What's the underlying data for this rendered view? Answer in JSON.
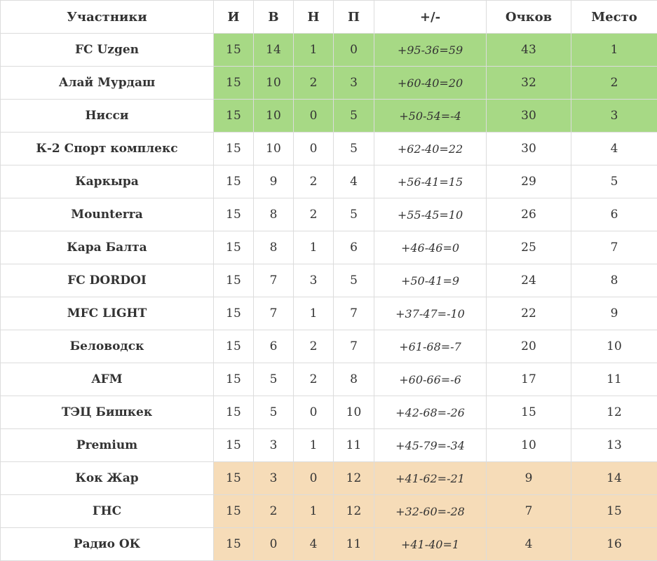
{
  "colors": {
    "promotion": "#a7d985",
    "relegation": "#f6dcb8"
  },
  "headers": [
    "Участники",
    "И",
    "В",
    "Н",
    "П",
    "+/-",
    "Очков",
    "Место"
  ],
  "rows": [
    {
      "team": "FC Uzgen",
      "i": "15",
      "v": "14",
      "n": "1",
      "p": "0",
      "diff": "+95-36=59",
      "pts": "43",
      "place": "1",
      "zone": "promo"
    },
    {
      "team": "Алай Мурдаш",
      "i": "15",
      "v": "10",
      "n": "2",
      "p": "3",
      "diff": "+60-40=20",
      "pts": "32",
      "place": "2",
      "zone": "promo"
    },
    {
      "team": "Нисси",
      "i": "15",
      "v": "10",
      "n": "0",
      "p": "5",
      "diff": "+50-54=-4",
      "pts": "30",
      "place": "3",
      "zone": "promo"
    },
    {
      "team": "К-2 Спорт комплекс",
      "i": "15",
      "v": "10",
      "n": "0",
      "p": "5",
      "diff": "+62-40=22",
      "pts": "30",
      "place": "4",
      "zone": ""
    },
    {
      "team": "Каркыра",
      "i": "15",
      "v": "9",
      "n": "2",
      "p": "4",
      "diff": "+56-41=15",
      "pts": "29",
      "place": "5",
      "zone": ""
    },
    {
      "team": "Mounterra",
      "i": "15",
      "v": "8",
      "n": "2",
      "p": "5",
      "diff": "+55-45=10",
      "pts": "26",
      "place": "6",
      "zone": ""
    },
    {
      "team": "Кара Балта",
      "i": "15",
      "v": "8",
      "n": "1",
      "p": "6",
      "diff": "+46-46=0",
      "pts": "25",
      "place": "7",
      "zone": ""
    },
    {
      "team": "FC DORDOI",
      "i": "15",
      "v": "7",
      "n": "3",
      "p": "5",
      "diff": "+50-41=9",
      "pts": "24",
      "place": "8",
      "zone": ""
    },
    {
      "team": "MFC LIGHT",
      "i": "15",
      "v": "7",
      "n": "1",
      "p": "7",
      "diff": "+37-47=-10",
      "pts": "22",
      "place": "9",
      "zone": ""
    },
    {
      "team": "Беловодск",
      "i": "15",
      "v": "6",
      "n": "2",
      "p": "7",
      "diff": "+61-68=-7",
      "pts": "20",
      "place": "10",
      "zone": ""
    },
    {
      "team": "AFM",
      "i": "15",
      "v": "5",
      "n": "2",
      "p": "8",
      "diff": "+60-66=-6",
      "pts": "17",
      "place": "11",
      "zone": ""
    },
    {
      "team": "ТЭЦ Бишкек",
      "i": "15",
      "v": "5",
      "n": "0",
      "p": "10",
      "diff": "+42-68=-26",
      "pts": "15",
      "place": "12",
      "zone": ""
    },
    {
      "team": "Premium",
      "i": "15",
      "v": "3",
      "n": "1",
      "p": "11",
      "diff": "+45-79=-34",
      "pts": "10",
      "place": "13",
      "zone": ""
    },
    {
      "team": "Кок Жар",
      "i": "15",
      "v": "3",
      "n": "0",
      "p": "12",
      "diff": "+41-62=-21",
      "pts": "9",
      "place": "14",
      "zone": "releg"
    },
    {
      "team": "ГНС",
      "i": "15",
      "v": "2",
      "n": "1",
      "p": "12",
      "diff": "+32-60=-28",
      "pts": "7",
      "place": "15",
      "zone": "releg"
    },
    {
      "team": "Радио ОК",
      "i": "15",
      "v": "0",
      "n": "4",
      "p": "11",
      "diff": "+41-40=1",
      "pts": "4",
      "place": "16",
      "zone": "releg"
    }
  ]
}
